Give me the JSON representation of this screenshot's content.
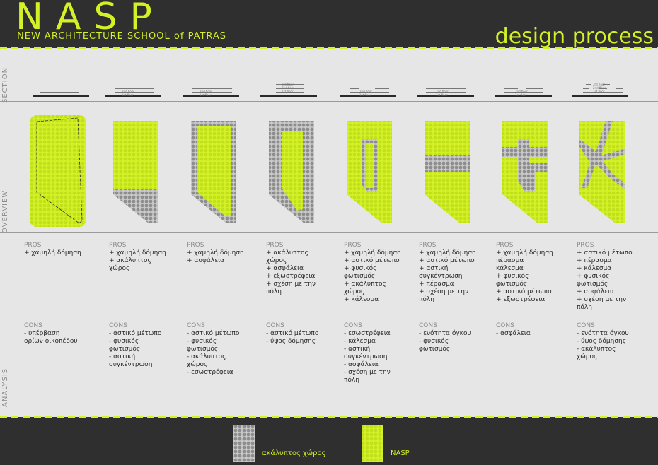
{
  "header": {
    "logo": "NASP",
    "subtitle": "NEW ARCHITECTURE SCHOOL of PATRAS",
    "title": "design process"
  },
  "row_labels": {
    "section": "SECTION",
    "overview": "OVERVIEW",
    "analysis": "ANALYSIS"
  },
  "colors": {
    "accent": "#d4f026",
    "gray_pattern": "#9b9b9b",
    "background": "#e6e6e6",
    "dark": "#2f2f2f"
  },
  "columns": [
    {
      "pros_label": "PROS",
      "pros": [
        "+ χαμηλή δόμηση"
      ],
      "cons_label": "CONS",
      "cons": [
        "- υπέρβαση",
        "ορίων οικοπέδου"
      ]
    },
    {
      "pros_label": "PROS",
      "pros": [
        "+ χαμηλή δόμηση",
        "+ ακάλυπτος",
        "χώρος"
      ],
      "cons_label": "CONS",
      "cons": [
        "- αστικό μέτωπο",
        "- φυσικός",
        "φωτισμός",
        "- αστική",
        "συγκέντρωση"
      ]
    },
    {
      "pros_label": "PROS",
      "pros": [
        "+ χαμηλή δόμηση",
        "+ ασφάλεια"
      ],
      "cons_label": "CONS",
      "cons": [
        "- αστικό μέτωπο",
        "- φυσικός",
        "φωτισμός",
        "- ακάλυπτος",
        "χώρος",
        "- εσωστρέφεια"
      ]
    },
    {
      "pros_label": "PROS",
      "pros": [
        "+ ακάλυπτος",
        "χώρος",
        "+ ασφάλεια",
        "+ εξωστρέφεια",
        "+ σχέση με την",
        "πόλη"
      ],
      "cons_label": "CONS",
      "cons": [
        "- αστικό μέτωπο",
        "- ύψος δόμησης"
      ]
    },
    {
      "pros_label": "PROS",
      "pros": [
        "+ χαμηλή δόμηση",
        "+ αστικό μέτωπο",
        "+ φυσικός",
        "φωτισμός",
        "+ ακάλυπτος",
        "χώρος",
        "+ κάλεσμα"
      ],
      "cons_label": "CONS",
      "cons": [
        "- εσωστρέφεια",
        "- κάλεσμα",
        "- αστική",
        "συγκέντρωση",
        "- ασφάλεια",
        "- σχέση με την",
        "πόλη"
      ]
    },
    {
      "pros_label": "PROS",
      "pros": [
        "+ χαμηλή δόμηση",
        "+ αστικό μέτωπο",
        "+ αστική",
        "συγκέντρωση",
        "+ πέρασμα",
        "+ σχέση με την",
        "πόλη"
      ],
      "cons_label": "CONS",
      "cons": [
        "- ενότητα όγκου",
        "- φυσικός",
        "φωτισμός"
      ]
    },
    {
      "pros_label": "PROS",
      "pros": [
        "+ χαμηλή δόμηση",
        "πέρασμα",
        "κάλεσμα",
        "+ φυσικός",
        "φωτισμός",
        "+ αστικό μέτωπο",
        "+ εξωστρέφεια"
      ],
      "cons_label": "CONS",
      "cons": [
        "- ασφάλεια"
      ]
    },
    {
      "pros_label": "PROS",
      "pros": [
        "+ αστικό μέτωπο",
        "+ πέρασμα",
        "+ κάλεσμα",
        "+ φυσικός",
        "φωτισμός",
        "+ ασφάλεια",
        "+ σχέση με την",
        "πόλη"
      ],
      "cons_label": "CONS",
      "cons": [
        "- ενότητα όγκου",
        "- ύψος δόμησης",
        "- ακάλυπτος",
        "χώρος"
      ]
    }
  ],
  "section_floor_labels": {
    "first": "1st floor",
    "second": "2nd floor",
    "third": "3rd floor"
  },
  "legend": {
    "gray_label": "ακάλυπτος χώρος",
    "green_label": "NASP"
  }
}
